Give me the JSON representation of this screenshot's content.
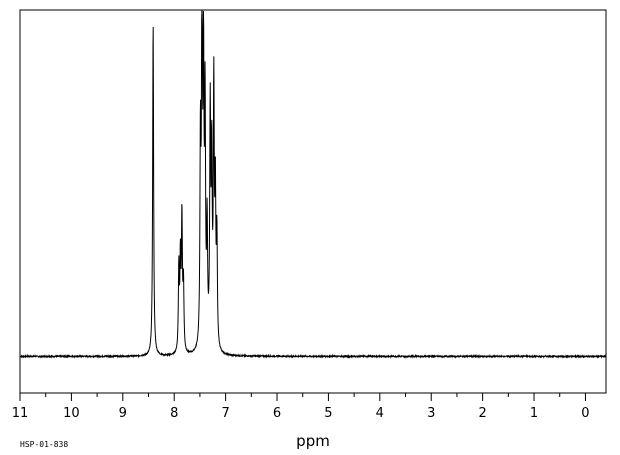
{
  "chart_data": {
    "type": "line",
    "title": "",
    "xlabel": "ppm",
    "ylabel": "",
    "sample_id": "HSP-01-838",
    "x_reversed": true,
    "xlim": [
      11,
      -0.4
    ],
    "ylim": [
      -0.11,
      1.04
    ],
    "grid": false,
    "x_ticks": [
      11,
      10,
      9,
      8,
      7,
      6,
      5,
      4,
      3,
      2,
      1,
      0
    ],
    "x_tick_labels": [
      "11",
      "10",
      "9",
      "8",
      "7",
      "6",
      "5",
      "4",
      "3",
      "2",
      "1",
      "0"
    ],
    "series": [
      {
        "peaks": [
          {
            "ppm": 8.41,
            "intensity": 1.0
          },
          {
            "ppm": 7.91,
            "intensity": 0.25
          },
          {
            "ppm": 7.88,
            "intensity": 0.27
          },
          {
            "ppm": 7.85,
            "intensity": 0.4
          },
          {
            "ppm": 7.82,
            "intensity": 0.2
          },
          {
            "ppm": 7.49,
            "intensity": 0.6
          },
          {
            "ppm": 7.46,
            "intensity": 1.05
          },
          {
            "ppm": 7.43,
            "intensity": 0.82
          },
          {
            "ppm": 7.4,
            "intensity": 0.7
          },
          {
            "ppm": 7.36,
            "intensity": 0.35
          },
          {
            "ppm": 7.3,
            "intensity": 0.7
          },
          {
            "ppm": 7.27,
            "intensity": 0.55
          },
          {
            "ppm": 7.23,
            "intensity": 0.77
          },
          {
            "ppm": 7.2,
            "intensity": 0.45
          },
          {
            "ppm": 7.17,
            "intensity": 0.33
          }
        ]
      }
    ]
  }
}
